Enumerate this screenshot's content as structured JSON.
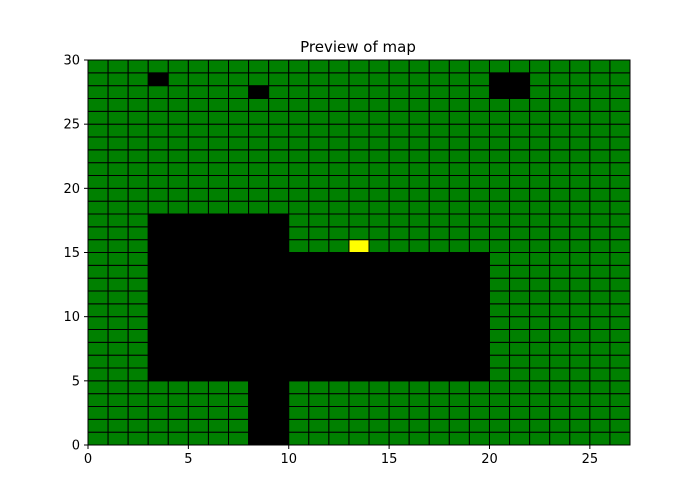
{
  "chart_data": {
    "type": "heatmap",
    "title": "Preview of map",
    "xlabel": "",
    "ylabel": "",
    "xlim": [
      0,
      27
    ],
    "ylim": [
      0,
      30
    ],
    "grid_cols": 27,
    "grid_rows": 30,
    "cell_width": 1,
    "cell_height": 1,
    "xticks": [
      0,
      5,
      10,
      15,
      20,
      25
    ],
    "yticks": [
      0,
      5,
      10,
      15,
      20,
      25,
      30
    ],
    "colors": {
      "free": "#008000",
      "obstacle": "#000000",
      "target": "#ffff00",
      "cell_edge": "#000000",
      "axes": "#000000",
      "background": "#ffffff"
    },
    "default_cell": "free",
    "obstacles": [
      {
        "x0": 3,
        "x1": 8,
        "y0": 5,
        "y1": 18
      },
      {
        "x0": 8,
        "x1": 10,
        "y0": 0,
        "y1": 18
      },
      {
        "x0": 10,
        "x1": 20,
        "y0": 5,
        "y1": 15
      },
      {
        "x0": 3,
        "x1": 4,
        "y0": 28,
        "y1": 29
      },
      {
        "x0": 8,
        "x1": 9,
        "y0": 27,
        "y1": 28
      },
      {
        "x0": 20,
        "x1": 22,
        "y0": 27,
        "y1": 29
      }
    ],
    "target_cells": [
      {
        "x": 13,
        "y": 15
      }
    ]
  }
}
